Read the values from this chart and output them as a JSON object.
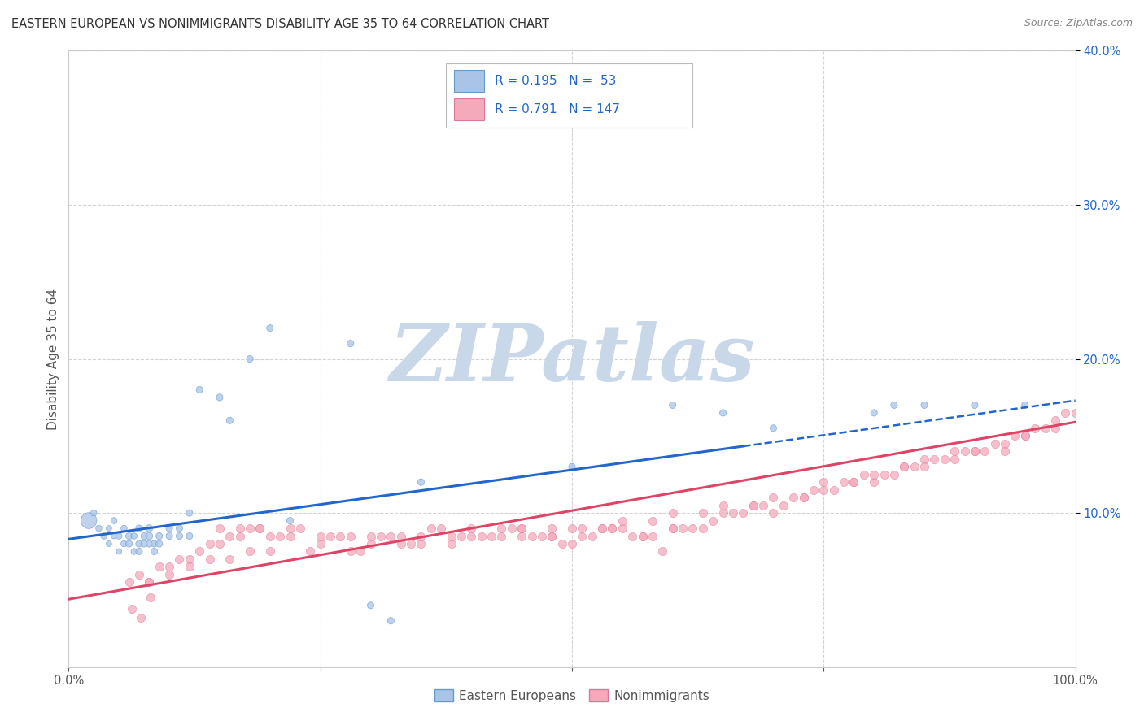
{
  "title": "EASTERN EUROPEAN VS NONIMMIGRANTS DISABILITY AGE 35 TO 64 CORRELATION CHART",
  "source": "Source: ZipAtlas.com",
  "ylabel": "Disability Age 35 to 64",
  "R_blue": 0.195,
  "N_blue": 53,
  "R_pink": 0.791,
  "N_pink": 147,
  "legend_blue": "Eastern Europeans",
  "legend_pink": "Nonimmigrants",
  "xlim": [
    0,
    1.0
  ],
  "ylim": [
    0,
    0.4
  ],
  "yticks": [
    0.1,
    0.2,
    0.3,
    0.4
  ],
  "background_color": "#ffffff",
  "grid_color": "#c8c8c8",
  "blue_dot_color": "#aac4e8",
  "blue_dot_edge": "#6699cc",
  "pink_dot_color": "#f5aabb",
  "pink_dot_edge": "#dd7799",
  "blue_line_color": "#2266cc",
  "pink_line_color": "#dd4466",
  "watermark_color": "#c8d8e8",
  "title_color": "#333333",
  "axis_label_color": "#555555",
  "tick_color": "#555555",
  "right_tick_color": "#2266cc",
  "source_color": "#888888",
  "blue_scatter_x": [
    0.02,
    0.025,
    0.03,
    0.035,
    0.04,
    0.04,
    0.045,
    0.045,
    0.05,
    0.05,
    0.055,
    0.055,
    0.06,
    0.06,
    0.065,
    0.065,
    0.07,
    0.07,
    0.07,
    0.075,
    0.075,
    0.08,
    0.08,
    0.08,
    0.085,
    0.085,
    0.09,
    0.09,
    0.1,
    0.1,
    0.11,
    0.11,
    0.12,
    0.12,
    0.13,
    0.15,
    0.16,
    0.18,
    0.2,
    0.22,
    0.28,
    0.3,
    0.32,
    0.35,
    0.5,
    0.6,
    0.65,
    0.7,
    0.8,
    0.82,
    0.85,
    0.9,
    0.95
  ],
  "blue_scatter_y": [
    0.095,
    0.1,
    0.09,
    0.085,
    0.08,
    0.09,
    0.085,
    0.095,
    0.075,
    0.085,
    0.08,
    0.09,
    0.08,
    0.085,
    0.075,
    0.085,
    0.075,
    0.08,
    0.09,
    0.08,
    0.085,
    0.08,
    0.085,
    0.09,
    0.075,
    0.08,
    0.08,
    0.085,
    0.085,
    0.09,
    0.085,
    0.09,
    0.085,
    0.1,
    0.18,
    0.175,
    0.16,
    0.2,
    0.22,
    0.095,
    0.21,
    0.04,
    0.03,
    0.12,
    0.13,
    0.17,
    0.165,
    0.155,
    0.165,
    0.17,
    0.17,
    0.17,
    0.17
  ],
  "blue_scatter_sizes": [
    200,
    30,
    30,
    30,
    25,
    25,
    25,
    30,
    25,
    30,
    30,
    30,
    35,
    35,
    30,
    30,
    35,
    35,
    35,
    35,
    35,
    35,
    40,
    40,
    35,
    35,
    35,
    35,
    35,
    35,
    35,
    35,
    35,
    35,
    35,
    35,
    35,
    35,
    35,
    35,
    35,
    35,
    35,
    35,
    35,
    35,
    35,
    35,
    35,
    35,
    35,
    35,
    35
  ],
  "pink_scatter_x": [
    0.06,
    0.07,
    0.08,
    0.09,
    0.1,
    0.11,
    0.12,
    0.13,
    0.14,
    0.15,
    0.16,
    0.17,
    0.18,
    0.19,
    0.2,
    0.21,
    0.22,
    0.23,
    0.24,
    0.25,
    0.26,
    0.27,
    0.28,
    0.29,
    0.3,
    0.31,
    0.32,
    0.33,
    0.34,
    0.35,
    0.36,
    0.37,
    0.38,
    0.39,
    0.4,
    0.41,
    0.42,
    0.43,
    0.44,
    0.45,
    0.46,
    0.47,
    0.48,
    0.49,
    0.5,
    0.51,
    0.52,
    0.53,
    0.54,
    0.55,
    0.56,
    0.57,
    0.58,
    0.59,
    0.6,
    0.61,
    0.62,
    0.63,
    0.64,
    0.65,
    0.66,
    0.67,
    0.68,
    0.69,
    0.7,
    0.71,
    0.72,
    0.73,
    0.74,
    0.75,
    0.76,
    0.77,
    0.78,
    0.79,
    0.8,
    0.81,
    0.82,
    0.83,
    0.84,
    0.85,
    0.86,
    0.87,
    0.88,
    0.89,
    0.9,
    0.91,
    0.92,
    0.93,
    0.94,
    0.95,
    0.96,
    0.97,
    0.98,
    0.99,
    1.0,
    0.15,
    0.17,
    0.19,
    0.22,
    0.25,
    0.28,
    0.3,
    0.33,
    0.35,
    0.38,
    0.4,
    0.43,
    0.45,
    0.48,
    0.5,
    0.53,
    0.55,
    0.58,
    0.6,
    0.63,
    0.65,
    0.68,
    0.7,
    0.73,
    0.75,
    0.78,
    0.8,
    0.83,
    0.85,
    0.88,
    0.9,
    0.93,
    0.95,
    0.98,
    0.08,
    0.1,
    0.12,
    0.14,
    0.16,
    0.18,
    0.2,
    0.45,
    0.48,
    0.51,
    0.54,
    0.57,
    0.6,
    0.063,
    0.072,
    0.081
  ],
  "pink_scatter_y": [
    0.055,
    0.06,
    0.055,
    0.065,
    0.065,
    0.07,
    0.07,
    0.075,
    0.08,
    0.08,
    0.085,
    0.085,
    0.09,
    0.09,
    0.085,
    0.085,
    0.09,
    0.09,
    0.075,
    0.08,
    0.085,
    0.085,
    0.075,
    0.075,
    0.08,
    0.085,
    0.085,
    0.08,
    0.08,
    0.08,
    0.09,
    0.09,
    0.08,
    0.085,
    0.09,
    0.085,
    0.085,
    0.085,
    0.09,
    0.085,
    0.085,
    0.085,
    0.085,
    0.08,
    0.08,
    0.085,
    0.085,
    0.09,
    0.09,
    0.09,
    0.085,
    0.085,
    0.085,
    0.075,
    0.09,
    0.09,
    0.09,
    0.09,
    0.095,
    0.1,
    0.1,
    0.1,
    0.105,
    0.105,
    0.1,
    0.105,
    0.11,
    0.11,
    0.115,
    0.115,
    0.115,
    0.12,
    0.12,
    0.125,
    0.12,
    0.125,
    0.125,
    0.13,
    0.13,
    0.135,
    0.135,
    0.135,
    0.135,
    0.14,
    0.14,
    0.14,
    0.145,
    0.145,
    0.15,
    0.15,
    0.155,
    0.155,
    0.16,
    0.165,
    0.165,
    0.09,
    0.09,
    0.09,
    0.085,
    0.085,
    0.085,
    0.085,
    0.085,
    0.085,
    0.085,
    0.085,
    0.09,
    0.09,
    0.09,
    0.09,
    0.09,
    0.095,
    0.095,
    0.1,
    0.1,
    0.105,
    0.105,
    0.11,
    0.11,
    0.12,
    0.12,
    0.125,
    0.13,
    0.13,
    0.14,
    0.14,
    0.14,
    0.15,
    0.155,
    0.055,
    0.06,
    0.065,
    0.07,
    0.07,
    0.075,
    0.075,
    0.09,
    0.085,
    0.09,
    0.09,
    0.085,
    0.09,
    0.038,
    0.032,
    0.045
  ]
}
